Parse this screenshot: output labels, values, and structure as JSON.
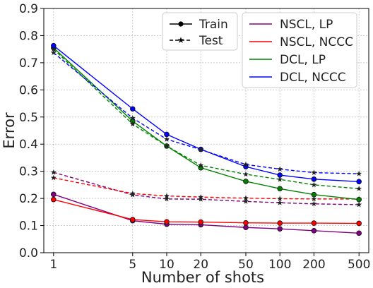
{
  "chart_data": {
    "type": "line",
    "title": "",
    "xlabel": "Number of shots",
    "ylabel": "Error",
    "x": [
      1,
      5,
      10,
      20,
      50,
      100,
      200,
      500
    ],
    "x_tick_labels": [
      "1",
      "5",
      "10",
      "20",
      "50",
      "100",
      "200",
      "500"
    ],
    "x_scale": "log",
    "ylim": [
      0.0,
      0.9
    ],
    "y_ticks": [
      0.0,
      0.1,
      0.2,
      0.3,
      0.4,
      0.5,
      0.6,
      0.7,
      0.8,
      0.9
    ],
    "y_tick_labels": [
      "0.0",
      "0.1",
      "0.2",
      "0.3",
      "0.4",
      "0.5",
      "0.6",
      "0.7",
      "0.8",
      "0.9"
    ],
    "grid": true,
    "series": [
      {
        "name": "NSCL, LP",
        "color": "#800080",
        "split": "Train",
        "values": [
          0.215,
          0.118,
          0.105,
          0.103,
          0.093,
          0.088,
          0.081,
          0.072
        ]
      },
      {
        "name": "NSCL, LP",
        "color": "#800080",
        "split": "Test",
        "values": [
          0.296,
          0.213,
          0.198,
          0.197,
          0.189,
          0.184,
          0.18,
          0.177
        ]
      },
      {
        "name": "NSCL, NCCC",
        "color": "#ff0000",
        "split": "Train",
        "values": [
          0.196,
          0.122,
          0.114,
          0.113,
          0.11,
          0.109,
          0.109,
          0.108
        ]
      },
      {
        "name": "NSCL, NCCC",
        "color": "#ff0000",
        "split": "Test",
        "values": [
          0.276,
          0.218,
          0.209,
          0.205,
          0.201,
          0.199,
          0.198,
          0.198
        ]
      },
      {
        "name": "DCL, LP",
        "color": "#008000",
        "split": "Train",
        "values": [
          0.755,
          0.485,
          0.393,
          0.313,
          0.263,
          0.236,
          0.214,
          0.196
        ]
      },
      {
        "name": "DCL, LP",
        "color": "#008000",
        "split": "Test",
        "values": [
          0.75,
          0.474,
          0.393,
          0.322,
          0.289,
          0.27,
          0.25,
          0.236
        ]
      },
      {
        "name": "DCL, NCCC",
        "color": "#0000ff",
        "split": "Train",
        "values": [
          0.763,
          0.53,
          0.436,
          0.381,
          0.317,
          0.286,
          0.271,
          0.262
        ]
      },
      {
        "name": "DCL, NCCC",
        "color": "#0000ff",
        "split": "Test",
        "values": [
          0.737,
          0.496,
          0.418,
          0.38,
          0.325,
          0.308,
          0.295,
          0.291
        ]
      }
    ],
    "legends": [
      {
        "placement": "top-center",
        "entries": [
          {
            "label": "Train",
            "line": "solid",
            "marker": "circle"
          },
          {
            "label": "Test",
            "line": "dashed",
            "marker": "star"
          }
        ]
      },
      {
        "placement": "top-right",
        "entries": [
          {
            "label": "NSCL, LP",
            "color": "#800080"
          },
          {
            "label": "NSCL, NCCC",
            "color": "#ff0000"
          },
          {
            "label": "DCL, LP",
            "color": "#008000"
          },
          {
            "label": "DCL, NCCC",
            "color": "#0000ff"
          }
        ]
      }
    ]
  }
}
